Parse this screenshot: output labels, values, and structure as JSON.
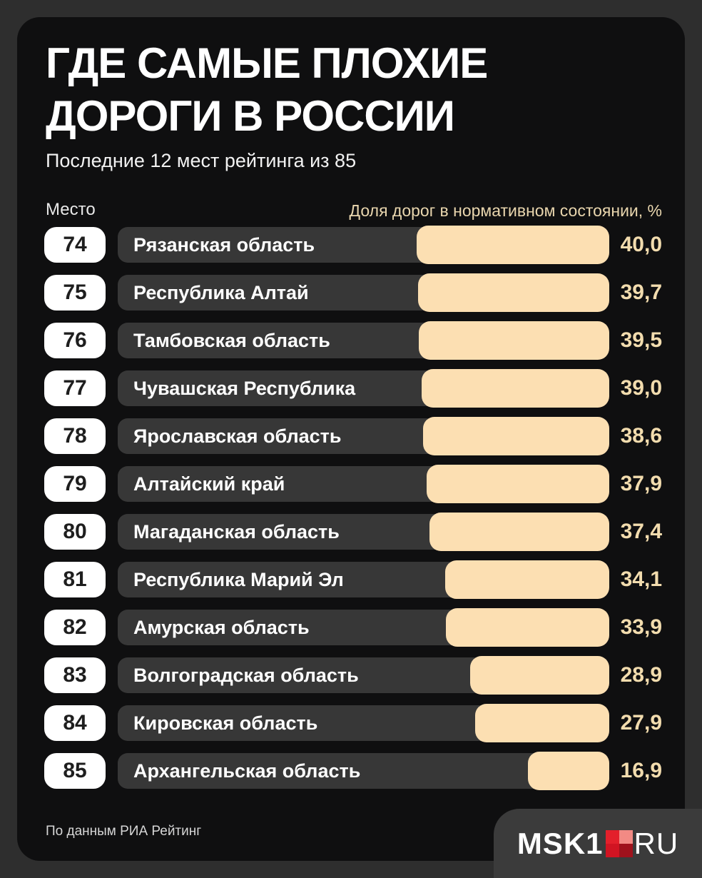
{
  "page": {
    "title_line1": "ГДЕ САМЫЕ ПЛОХИЕ",
    "title_line2": "ДОРОГИ В РОССИИ",
    "subtitle": "Последние 12 мест рейтинга из 85",
    "column_left": "Место",
    "column_right": "Доля дорог в нормативном состоянии, %",
    "source": "По данным РИА Рейтинг",
    "logo": {
      "brand": "MSK1",
      "suffix": "RU"
    }
  },
  "colors": {
    "outer_background": "#2e2e2e",
    "panel_background": "#0f0f10",
    "track": "#373737",
    "bar_cream": "#fcdfb2",
    "value_text": "#f2dcae",
    "header_right_text": "#e9d6ae",
    "badge_background": "#ffffff",
    "badge_text": "#1e1e1e",
    "logo_plate": "#3b3b3b",
    "logo_red_tl": "#e3202b",
    "logo_red_tr": "#f28a84",
    "logo_red_bl": "#d11422",
    "logo_red_br": "#9f121c"
  },
  "chart_data": {
    "type": "bar",
    "title": "ГДЕ САМЫЕ ПЛОХИЕ ДОРОГИ В РОССИИ",
    "subtitle": "Последние 12 мест рейтинга из 85",
    "xlabel": "Доля дорог в нормативном состоянии, %",
    "ylabel": "Место",
    "xlim": [
      0,
      40
    ],
    "orientation": "horizontal",
    "grid": false,
    "legend": "none",
    "rows": [
      {
        "rank": "74",
        "region": "Рязанская область",
        "value": 40.0,
        "display": "40,0"
      },
      {
        "rank": "75",
        "region": "Республика Алтай",
        "value": 39.7,
        "display": "39,7"
      },
      {
        "rank": "76",
        "region": "Тамбовская область",
        "value": 39.5,
        "display": "39,5"
      },
      {
        "rank": "77",
        "region": "Чувашская Республика",
        "value": 39.0,
        "display": "39,0"
      },
      {
        "rank": "78",
        "region": "Ярославская область",
        "value": 38.6,
        "display": "38,6"
      },
      {
        "rank": "79",
        "region": "Алтайский край",
        "value": 37.9,
        "display": "37,9"
      },
      {
        "rank": "80",
        "region": "Магаданская область",
        "value": 37.4,
        "display": "37,4"
      },
      {
        "rank": "81",
        "region": "Республика Марий Эл",
        "value": 34.1,
        "display": "34,1"
      },
      {
        "rank": "82",
        "region": "Амурская область",
        "value": 33.9,
        "display": "33,9"
      },
      {
        "rank": "83",
        "region": "Волгоградская область",
        "value": 28.9,
        "display": "28,9"
      },
      {
        "rank": "84",
        "region": "Кировская область",
        "value": 27.9,
        "display": "27,9"
      },
      {
        "rank": "85",
        "region": "Архангельская область",
        "value": 16.9,
        "display": "16,9"
      }
    ]
  }
}
